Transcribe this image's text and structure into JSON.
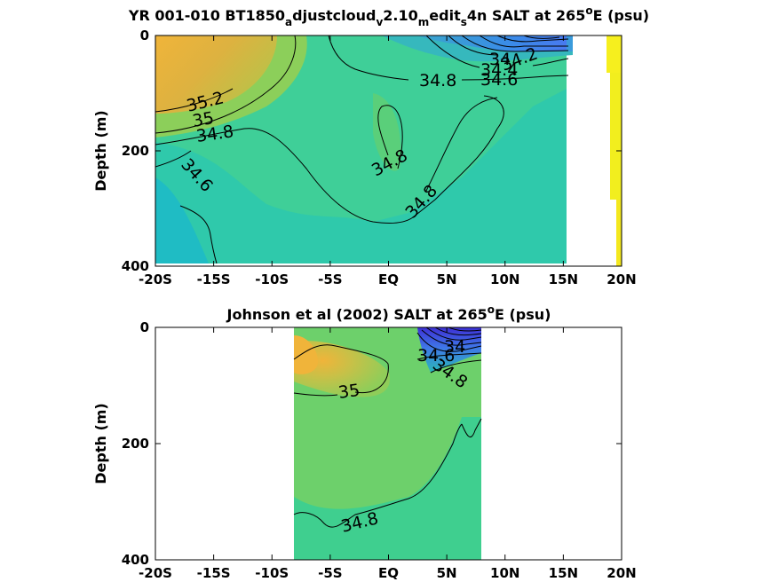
{
  "chart_data": [
    {
      "type": "contour",
      "title_parts": [
        "YR 001-010 BT1850",
        "a",
        "djustcloud",
        "v",
        "2.10",
        "m",
        "edit",
        "s",
        "4n SALT at 265",
        "o",
        "E (psu)"
      ],
      "xlabel": "",
      "ylabel": "Depth (m)",
      "xlim": [
        -20,
        20
      ],
      "ylim": [
        400,
        0
      ],
      "x_ticks": [
        -20,
        -15,
        -10,
        -5,
        0,
        5,
        10,
        15,
        20
      ],
      "x_tick_labels": [
        "-20S",
        "-15S",
        "-10S",
        "-5S",
        "EQ",
        "5N",
        "10N",
        "15N",
        "20N"
      ],
      "y_ticks": [
        0,
        200,
        400
      ],
      "y_tick_labels": [
        "0",
        "200",
        "400"
      ],
      "contour_labels": [
        {
          "text": "35.2",
          "x": -17.3,
          "depth": 115
        },
        {
          "text": "35",
          "x": -17.8,
          "depth": 140
        },
        {
          "text": "34.8",
          "x": -16.5,
          "depth": 165
        },
        {
          "text": "34.6",
          "x": -16.8,
          "depth": 245
        },
        {
          "text": "34.8",
          "x": 0.2,
          "depth": 220
        },
        {
          "text": "34.8",
          "x": 1.6,
          "depth": 295
        },
        {
          "text": "34.8",
          "x": 2.2,
          "depth": 75
        },
        {
          "text": "34",
          "x": 7.9,
          "depth": 45
        },
        {
          "text": "34.2",
          "x": 9.8,
          "depth": 55
        },
        {
          "text": "34.4",
          "x": 8.2,
          "depth": 62
        },
        {
          "text": "34.6",
          "x": 7.8,
          "depth": 73
        }
      ]
    },
    {
      "type": "contour",
      "title_parts": [
        "Johnson et al (2002) SALT at 265",
        "o",
        "E (psu)"
      ],
      "xlabel": "",
      "ylabel": "Depth (m)",
      "xlim": [
        -20,
        20
      ],
      "ylim": [
        400,
        0
      ],
      "data_x_range": [
        -8,
        8
      ],
      "x_ticks": [
        -20,
        -15,
        -10,
        -5,
        0,
        5,
        10,
        15,
        20
      ],
      "x_tick_labels": [
        "-20S",
        "-15S",
        "-10S",
        "-5S",
        "EQ",
        "5N",
        "10N",
        "15N",
        "20N"
      ],
      "y_ticks": [
        0,
        200,
        400
      ],
      "y_tick_labels": [
        "0",
        "200",
        "400"
      ],
      "contour_labels": [
        {
          "text": "35",
          "x": -3.2,
          "depth": 115
        },
        {
          "text": "34.8",
          "x": -2.2,
          "depth": 335
        },
        {
          "text": "34.6",
          "x": 4.5,
          "depth": 50
        },
        {
          "text": "34.8",
          "x": 5.2,
          "depth": 78
        },
        {
          "text": "34",
          "x": 5.8,
          "depth": 30
        }
      ]
    }
  ]
}
